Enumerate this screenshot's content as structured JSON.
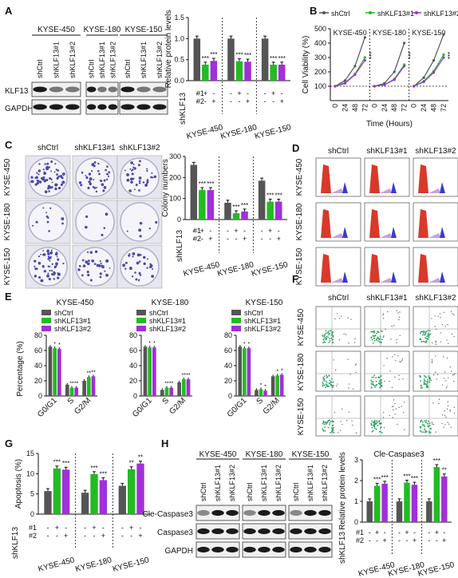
{
  "panels": {
    "A": {
      "letter": "A",
      "cell_lines": [
        "KYSE-450",
        "KYSE-180",
        "KYSE-150"
      ],
      "lane_labels": [
        "shCtrl",
        "shKLF13#1",
        "shKLF13#2"
      ],
      "blot_rows": [
        "KLF13",
        "GAPDH"
      ],
      "chart": {
        "type": "bar",
        "ylabel": "Relative protein levels",
        "ylim": [
          0,
          1.5
        ],
        "yticks": [
          "0.0",
          "0.5",
          "1.0",
          "1.5"
        ],
        "categories": [
          "KYSE-450",
          "KYSE-180",
          "KYSE-150"
        ],
        "series": [
          {
            "name": "shCtrl",
            "values": [
              1.0,
              1.0,
              1.0
            ]
          },
          {
            "name": "shKLF13#1",
            "values": [
              0.38,
              0.46,
              0.38
            ]
          },
          {
            "name": "shKLF13#2",
            "values": [
              0.47,
              0.45,
              0.38
            ]
          }
        ],
        "stars": [
          [
            "",
            "***",
            "***"
          ],
          [
            "",
            "***",
            "***"
          ],
          [
            "",
            "***",
            "***"
          ]
        ],
        "design": {
          "row_labels": [
            "shKLF13",
            "#1",
            "#2"
          ],
          "marks": [
            "-",
            "+",
            "-",
            "-",
            "-",
            "+"
          ]
        }
      }
    },
    "B": {
      "letter": "B",
      "legend": [
        "shCtrl",
        "shKLF13#1",
        "shKLF13#2"
      ],
      "ylabel": "Cell Viability (%)",
      "xlabel": "Time (Hours)",
      "yticks": [
        "100",
        "200",
        "300",
        "400",
        "500"
      ],
      "xticks": [
        "0",
        "24",
        "48",
        "72"
      ],
      "sub_titles": [
        "KYSE-450",
        "KYSE-180",
        "KYSE-150"
      ],
      "chart": {
        "type": "line",
        "x": [
          0,
          24,
          48,
          72
        ],
        "ylim": [
          0,
          500
        ],
        "series": [
          {
            "name": "shCtrl",
            "values": [
              [
                100,
                140,
                240,
                440
              ],
              [
                100,
                120,
                200,
                400
              ],
              [
                100,
                160,
                280,
                460
              ]
            ]
          },
          {
            "name": "shKLF13#1",
            "values": [
              [
                100,
                125,
                185,
                300
              ],
              [
                100,
                110,
                150,
                250
              ],
              [
                100,
                135,
                205,
                320
              ]
            ]
          },
          {
            "name": "shKLF13#2",
            "values": [
              [
                100,
                120,
                180,
                280
              ],
              [
                100,
                110,
                145,
                240
              ],
              [
                100,
                130,
                195,
                300
              ]
            ]
          }
        ],
        "stars": [
          "***",
          "***",
          "***"
        ]
      }
    },
    "C": {
      "letter": "C",
      "col_labels": [
        "shCtrl",
        "shKLF13#1",
        "shKLF13#2"
      ],
      "row_labels": [
        "KYSE-450",
        "KYSE-180",
        "KYSE-150"
      ],
      "chart": {
        "type": "bar",
        "ylabel": "Colony numbers",
        "ylim": [
          0,
          300
        ],
        "yticks": [
          "0",
          "100",
          "200",
          "300"
        ],
        "categories": [
          "KYSE-450",
          "KYSE-180",
          "KYSE-150"
        ],
        "series": [
          {
            "name": "shCtrl",
            "values": [
              260,
              80,
              185
            ]
          },
          {
            "name": "shKLF13#1",
            "values": [
              140,
              30,
              85
            ]
          },
          {
            "name": "shKLF13#2",
            "values": [
              140,
              38,
              85
            ]
          }
        ],
        "stars": [
          [
            "",
            "***",
            "***"
          ],
          [
            "",
            "***",
            "***"
          ],
          [
            "",
            "***",
            "***"
          ]
        ],
        "design": {
          "row_labels": [
            "shKLF13",
            "#1",
            "#2"
          ],
          "marks": [
            "-",
            "+",
            "-",
            "-",
            "-",
            "+"
          ]
        }
      }
    },
    "D": {
      "letter": "D",
      "col_labels": [
        "shCtrl",
        "shKLF13#1",
        "shKLF13#2"
      ],
      "row_labels": [
        "KYSE-450",
        "KYSE-180",
        "KYSE-150"
      ]
    },
    "E": {
      "letter": "E",
      "ylabel": "Percentage (%)",
      "yticks": [
        "0",
        "20",
        "40",
        "60",
        "80"
      ],
      "legend": [
        "shCtrl",
        "shKLF13#1",
        "shKLF13#2"
      ],
      "phases": [
        "G0/G1",
        "S",
        "G2/M"
      ],
      "chart": [
        {
          "type": "bar",
          "title": "KYSE-450",
          "categories": [
            "G0/G1",
            "S",
            "G2/M"
          ],
          "ylim": [
            0,
            80
          ],
          "series": [
            {
              "name": "shCtrl",
              "values": [
                65,
                15,
                20
              ]
            },
            {
              "name": "shKLF13#1",
              "values": [
                63,
                11,
                25
              ]
            },
            {
              "name": "shKLF13#2",
              "values": [
                62,
                11,
                26
              ]
            }
          ],
          "stars": [
            [
              "",
              "*",
              "*"
            ],
            [
              "",
              "**",
              "**"
            ],
            [
              "",
              "**",
              "**"
            ]
          ]
        },
        {
          "type": "bar",
          "title": "KYSE-180",
          "categories": [
            "G0/G1",
            "S",
            "G2/M"
          ],
          "ylim": [
            0,
            80
          ],
          "series": [
            {
              "name": "shCtrl",
              "values": [
                65,
                8,
                18
              ]
            },
            {
              "name": "shKLF13#1",
              "values": [
                64,
                11,
                22
              ]
            },
            {
              "name": "shKLF13#2",
              "values": [
                64,
                11,
                22
              ]
            }
          ],
          "stars": [
            [
              "",
              "*",
              "*"
            ],
            [
              "",
              "**",
              "**"
            ],
            [
              "",
              "**",
              "**"
            ]
          ]
        },
        {
          "type": "bar",
          "title": "KYSE-150",
          "categories": [
            "G0/G1",
            "S",
            "G2/M"
          ],
          "ylim": [
            0,
            80
          ],
          "series": [
            {
              "name": "shCtrl",
              "values": [
                65,
                8,
                26
              ]
            },
            {
              "name": "shKLF13#1",
              "values": [
                63,
                9,
                27
              ]
            },
            {
              "name": "shKLF13#2",
              "values": [
                63,
                7,
                28
              ]
            }
          ],
          "stars": [
            [
              "",
              "*",
              "*"
            ],
            [
              "",
              "*",
              "*"
            ],
            [
              "",
              "*",
              "*"
            ]
          ]
        }
      ]
    },
    "F": {
      "letter": "F",
      "col_labels": [
        "shCtrl",
        "shKLF13#1",
        "shKLF13#2"
      ],
      "row_labels": [
        "KYSE-450",
        "KYSE-180",
        "KYSE-150"
      ]
    },
    "G": {
      "letter": "G",
      "chart": {
        "type": "bar",
        "ylabel": "Apoptosis (%)",
        "ylim": [
          0,
          15
        ],
        "yticks": [
          "0",
          "5",
          "10",
          "15"
        ],
        "categories": [
          "KYSE-450",
          "KYSE-180",
          "KYSE-150"
        ],
        "series": [
          {
            "name": "shCtrl",
            "values": [
              5.7,
              5.3,
              7.0
            ]
          },
          {
            "name": "shKLF13#1",
            "values": [
              11.3,
              9.9,
              11.1
            ]
          },
          {
            "name": "shKLF13#2",
            "values": [
              11.0,
              8.4,
              12.5
            ]
          }
        ],
        "stars": [
          [
            "",
            "***",
            "***"
          ],
          [
            "",
            "***",
            "***"
          ],
          [
            "",
            "**",
            "**"
          ]
        ],
        "design": {
          "row_labels": [
            "shKLF13",
            "#1",
            "#2"
          ],
          "marks": [
            "-",
            "+",
            "-",
            "-",
            "-",
            "+"
          ]
        }
      }
    },
    "H": {
      "letter": "H",
      "cell_lines": [
        "KYSE-450",
        "KYSE-180",
        "KYSE-150"
      ],
      "lane_labels": [
        "shCtrl",
        "shKLF13#1",
        "shKLF13#2"
      ],
      "blot_rows": [
        "Cle-Caspase3",
        "Caspase3",
        "GAPDH"
      ],
      "chart": {
        "type": "bar",
        "title": "Cle-Caspase3",
        "ylabel": "Relative protein levels",
        "ylim": [
          0,
          3
        ],
        "yticks": [
          "0",
          "1",
          "2",
          "3"
        ],
        "categories": [
          "KYSE-450",
          "KYSE-180",
          "KYSE-150"
        ],
        "series": [
          {
            "name": "shCtrl",
            "values": [
              1.0,
              1.0,
              1.0
            ]
          },
          {
            "name": "shKLF13#1",
            "values": [
              1.75,
              1.9,
              2.65
            ]
          },
          {
            "name": "shKLF13#2",
            "values": [
              1.85,
              1.8,
              2.2
            ]
          }
        ],
        "stars": [
          [
            "",
            "***",
            "***"
          ],
          [
            "",
            "***",
            "***"
          ],
          [
            "",
            "***",
            "**"
          ]
        ],
        "design": {
          "row_labels": [
            "shKLF13",
            "#1",
            "#2"
          ],
          "marks": [
            "-",
            "+",
            "-",
            "-",
            "-",
            "+"
          ]
        }
      }
    }
  },
  "colors": {
    "shCtrl": "#555555",
    "shKLF13#1": "#22bb22",
    "shKLF13#2": "#a030d8",
    "flow_red": "#d83a2a",
    "flow_blue": "#3a3ad0",
    "colony": "#4a4aa8"
  }
}
